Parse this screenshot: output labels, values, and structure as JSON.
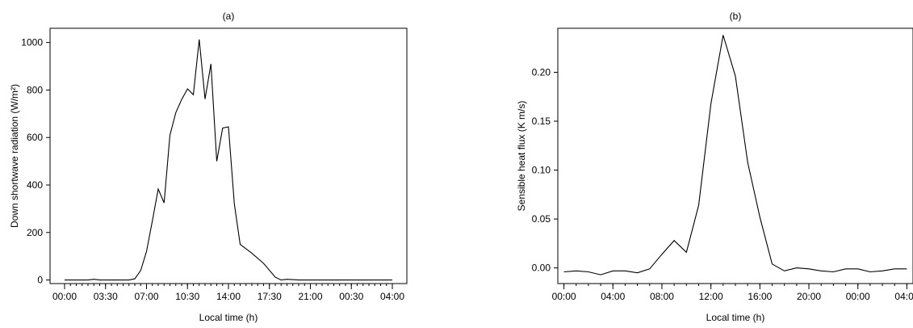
{
  "chart_data": [
    {
      "type": "line",
      "title": "(a)",
      "xlabel": "Local time (h)",
      "ylabel": "Down shortwave radiation (W/m²)",
      "x_tick_labels": [
        "00:00",
        "03:30",
        "07:00",
        "10:30",
        "14:00",
        "17:30",
        "21:00",
        "00:30",
        "04:00"
      ],
      "x_tick_hours": [
        0,
        3.5,
        7,
        10.5,
        14,
        17.5,
        21,
        24.5,
        28
      ],
      "xlim": [
        0,
        28
      ],
      "ylim": [
        -15,
        1060
      ],
      "y_ticks": [
        0,
        200,
        400,
        600,
        800,
        1000
      ],
      "grid": false,
      "series": [
        {
          "x": [
            0,
            2,
            2.5,
            3,
            4,
            5,
            5.5,
            6,
            6.5,
            7,
            7.5,
            8,
            8.5,
            9,
            9.5,
            10,
            10.5,
            11,
            11.5,
            12,
            12.5,
            13,
            13.5,
            14,
            14.5,
            15,
            16,
            17,
            18,
            18.5,
            19,
            20,
            21,
            22,
            24,
            26,
            28
          ],
          "y": [
            0,
            0,
            3,
            0,
            0,
            0,
            0,
            5,
            40,
            120,
            250,
            383,
            325,
            610,
            705,
            760,
            805,
            780,
            1013,
            762,
            910,
            500,
            640,
            645,
            320,
            150,
            113,
            70,
            12,
            0,
            3,
            0,
            0,
            0,
            0,
            0,
            0
          ]
        }
      ]
    },
    {
      "type": "line",
      "title": "(b)",
      "xlabel": "Local time (h)",
      "ylabel": "Sensible heat flux (K m/s)",
      "x_tick_labels": [
        "00:00",
        "04:00",
        "08:00",
        "12:00",
        "16:00",
        "20:00",
        "00:00",
        "04:00"
      ],
      "x_tick_hours": [
        0,
        4,
        8,
        12,
        16,
        20,
        24,
        28
      ],
      "xlim": [
        -0.5,
        28.5
      ],
      "ylim": [
        -0.016,
        0.245
      ],
      "y_ticks": [
        0.0,
        0.05,
        0.1,
        0.15,
        0.2
      ],
      "y_tick_labels": [
        "0.00",
        "0.05",
        "0.10",
        "0.15",
        "0.20"
      ],
      "grid": false,
      "series": [
        {
          "x": [
            0,
            1,
            2,
            3,
            4,
            5,
            6,
            7,
            8,
            9,
            10,
            11,
            12,
            13,
            14,
            15,
            16,
            17,
            18,
            19,
            20,
            21,
            22,
            23,
            24,
            25,
            26,
            27,
            28
          ],
          "y": [
            -0.004,
            -0.003,
            -0.004,
            -0.007,
            -0.003,
            -0.003,
            -0.005,
            -0.001,
            0.014,
            0.028,
            0.016,
            0.064,
            0.168,
            0.238,
            0.196,
            0.108,
            0.052,
            0.004,
            -0.003,
            0.0,
            -0.001,
            -0.003,
            -0.004,
            -0.001,
            -0.001,
            -0.004,
            -0.003,
            -0.001,
            -0.001
          ]
        }
      ]
    }
  ]
}
